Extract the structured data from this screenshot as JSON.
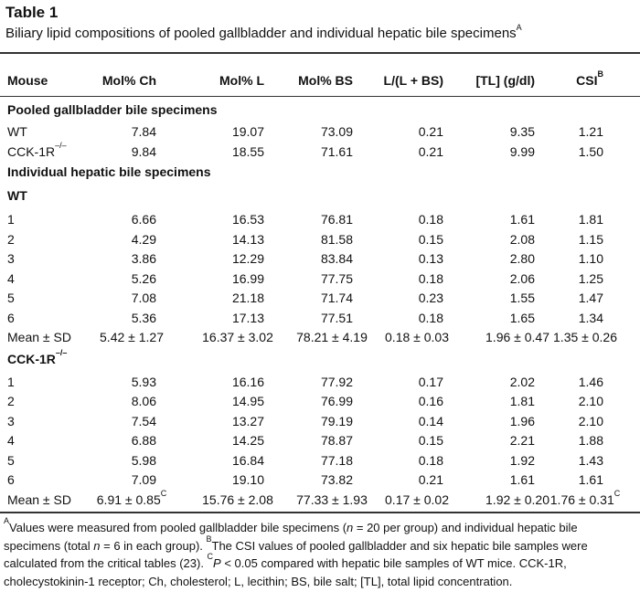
{
  "title": "Table 1",
  "subtitle": {
    "text": "Biliary lipid compositions of pooled gallbladder and individual hepatic bile specimens",
    "sup": "A"
  },
  "table": {
    "header": [
      "Mouse",
      "Mol% Ch",
      "Mol% L",
      "Mol% BS",
      "L/(L + BS)",
      "[TL] (g/dl)",
      {
        "text": "CSI",
        "sup": "B"
      }
    ],
    "rows": [
      {
        "heading": {
          "text": "Pooled gallbladder bile specimens"
        }
      },
      {
        "cells": [
          {
            "text": "WT"
          },
          {
            "text": "7.84"
          },
          {
            "text": "19.07"
          },
          {
            "text": "73.09"
          },
          {
            "text": "0.21"
          },
          {
            "text": "9.35"
          },
          {
            "text": "1.21"
          }
        ]
      },
      {
        "cells": [
          {
            "text": "CCK-1R",
            "sup": "–/–"
          },
          {
            "text": "9.84"
          },
          {
            "text": "18.55"
          },
          {
            "text": "71.61"
          },
          {
            "text": "0.21"
          },
          {
            "text": "9.99"
          },
          {
            "text": "1.50"
          }
        ]
      },
      {
        "heading": {
          "text": "Individual hepatic bile specimens"
        }
      },
      {
        "heading": {
          "text": "WT"
        }
      },
      {
        "cells": [
          {
            "text": "1"
          },
          {
            "text": "6.66"
          },
          {
            "text": "16.53"
          },
          {
            "text": "76.81"
          },
          {
            "text": "0.18"
          },
          {
            "text": "1.61"
          },
          {
            "text": "1.81"
          }
        ]
      },
      {
        "cells": [
          {
            "text": "2"
          },
          {
            "text": "4.29"
          },
          {
            "text": "14.13"
          },
          {
            "text": "81.58"
          },
          {
            "text": "0.15"
          },
          {
            "text": "2.08"
          },
          {
            "text": "1.15"
          }
        ]
      },
      {
        "cells": [
          {
            "text": "3"
          },
          {
            "text": "3.86"
          },
          {
            "text": "12.29"
          },
          {
            "text": "83.84"
          },
          {
            "text": "0.13"
          },
          {
            "text": "2.80"
          },
          {
            "text": "1.10"
          }
        ]
      },
      {
        "cells": [
          {
            "text": "4"
          },
          {
            "text": "5.26"
          },
          {
            "text": "16.99"
          },
          {
            "text": "77.75"
          },
          {
            "text": "0.18"
          },
          {
            "text": "2.06"
          },
          {
            "text": "1.25"
          }
        ]
      },
      {
        "cells": [
          {
            "text": "5"
          },
          {
            "text": "7.08"
          },
          {
            "text": "21.18"
          },
          {
            "text": "71.74"
          },
          {
            "text": "0.23"
          },
          {
            "text": "1.55"
          },
          {
            "text": "1.47"
          }
        ]
      },
      {
        "cells": [
          {
            "text": "6"
          },
          {
            "text": "5.36"
          },
          {
            "text": "17.13"
          },
          {
            "text": "77.51"
          },
          {
            "text": "0.18"
          },
          {
            "text": "1.65"
          },
          {
            "text": "1.34"
          }
        ]
      },
      {
        "cells": [
          {
            "text": "Mean ± SD"
          },
          {
            "text": "5.42 ± 1.27"
          },
          {
            "text": "16.37 ± 3.02"
          },
          {
            "text": "78.21 ± 4.19"
          },
          {
            "text": "0.18 ± 0.03"
          },
          {
            "text": "1.96 ± 0.47"
          },
          {
            "text": "1.35 ± 0.26"
          }
        ]
      },
      {
        "heading": {
          "text": "CCK-1R",
          "sup": "–/–"
        }
      },
      {
        "cells": [
          {
            "text": "1"
          },
          {
            "text": "5.93"
          },
          {
            "text": "16.16"
          },
          {
            "text": "77.92"
          },
          {
            "text": "0.17"
          },
          {
            "text": "2.02"
          },
          {
            "text": "1.46"
          }
        ]
      },
      {
        "cells": [
          {
            "text": "2"
          },
          {
            "text": "8.06"
          },
          {
            "text": "14.95"
          },
          {
            "text": "76.99"
          },
          {
            "text": "0.16"
          },
          {
            "text": "1.81"
          },
          {
            "text": "2.10"
          }
        ]
      },
      {
        "cells": [
          {
            "text": "3"
          },
          {
            "text": "7.54"
          },
          {
            "text": "13.27"
          },
          {
            "text": "79.19"
          },
          {
            "text": "0.14"
          },
          {
            "text": "1.96"
          },
          {
            "text": "2.10"
          }
        ]
      },
      {
        "cells": [
          {
            "text": "4"
          },
          {
            "text": "6.88"
          },
          {
            "text": "14.25"
          },
          {
            "text": "78.87"
          },
          {
            "text": "0.15"
          },
          {
            "text": "2.21"
          },
          {
            "text": "1.88"
          }
        ]
      },
      {
        "cells": [
          {
            "text": "5"
          },
          {
            "text": "5.98"
          },
          {
            "text": "16.84"
          },
          {
            "text": "77.18"
          },
          {
            "text": "0.18"
          },
          {
            "text": "1.92"
          },
          {
            "text": "1.43"
          }
        ]
      },
      {
        "cells": [
          {
            "text": "6"
          },
          {
            "text": "7.09"
          },
          {
            "text": "19.10"
          },
          {
            "text": "73.82"
          },
          {
            "text": "0.21"
          },
          {
            "text": "1.61"
          },
          {
            "text": "1.61"
          }
        ]
      },
      {
        "cells": [
          {
            "text": "Mean ± SD"
          },
          {
            "text": "6.91 ± 0.85",
            "sup": "C"
          },
          {
            "text": "15.76 ± 2.08"
          },
          {
            "text": "77.33 ± 1.93"
          },
          {
            "text": "0.17 ± 0.02"
          },
          {
            "text": "1.92 ± 0.20"
          },
          {
            "text": "1.76 ± 0.31",
            "sup": "C"
          }
        ]
      }
    ]
  },
  "footnote": [
    {
      "sup": "A"
    },
    {
      "text": "Values were measured from pooled gallbladder bile specimens ("
    },
    {
      "italic": "n"
    },
    {
      "text": " = 20 per group) and individual hepatic bile specimens (total "
    },
    {
      "italic": "n"
    },
    {
      "text": " = 6 in each group). "
    },
    {
      "sup": "B"
    },
    {
      "text": "The CSI values of pooled gallbladder and six hepatic bile samples were calculated from the critical tables (23). "
    },
    {
      "sup": "C"
    },
    {
      "italic": "P"
    },
    {
      "text": " < 0.05 compared with hepatic bile samples of WT mice. CCK-1R, cholecystokinin-1 receptor; Ch, cholesterol; L, lecithin; BS, bile salt; [TL], total lipid concentration."
    }
  ]
}
